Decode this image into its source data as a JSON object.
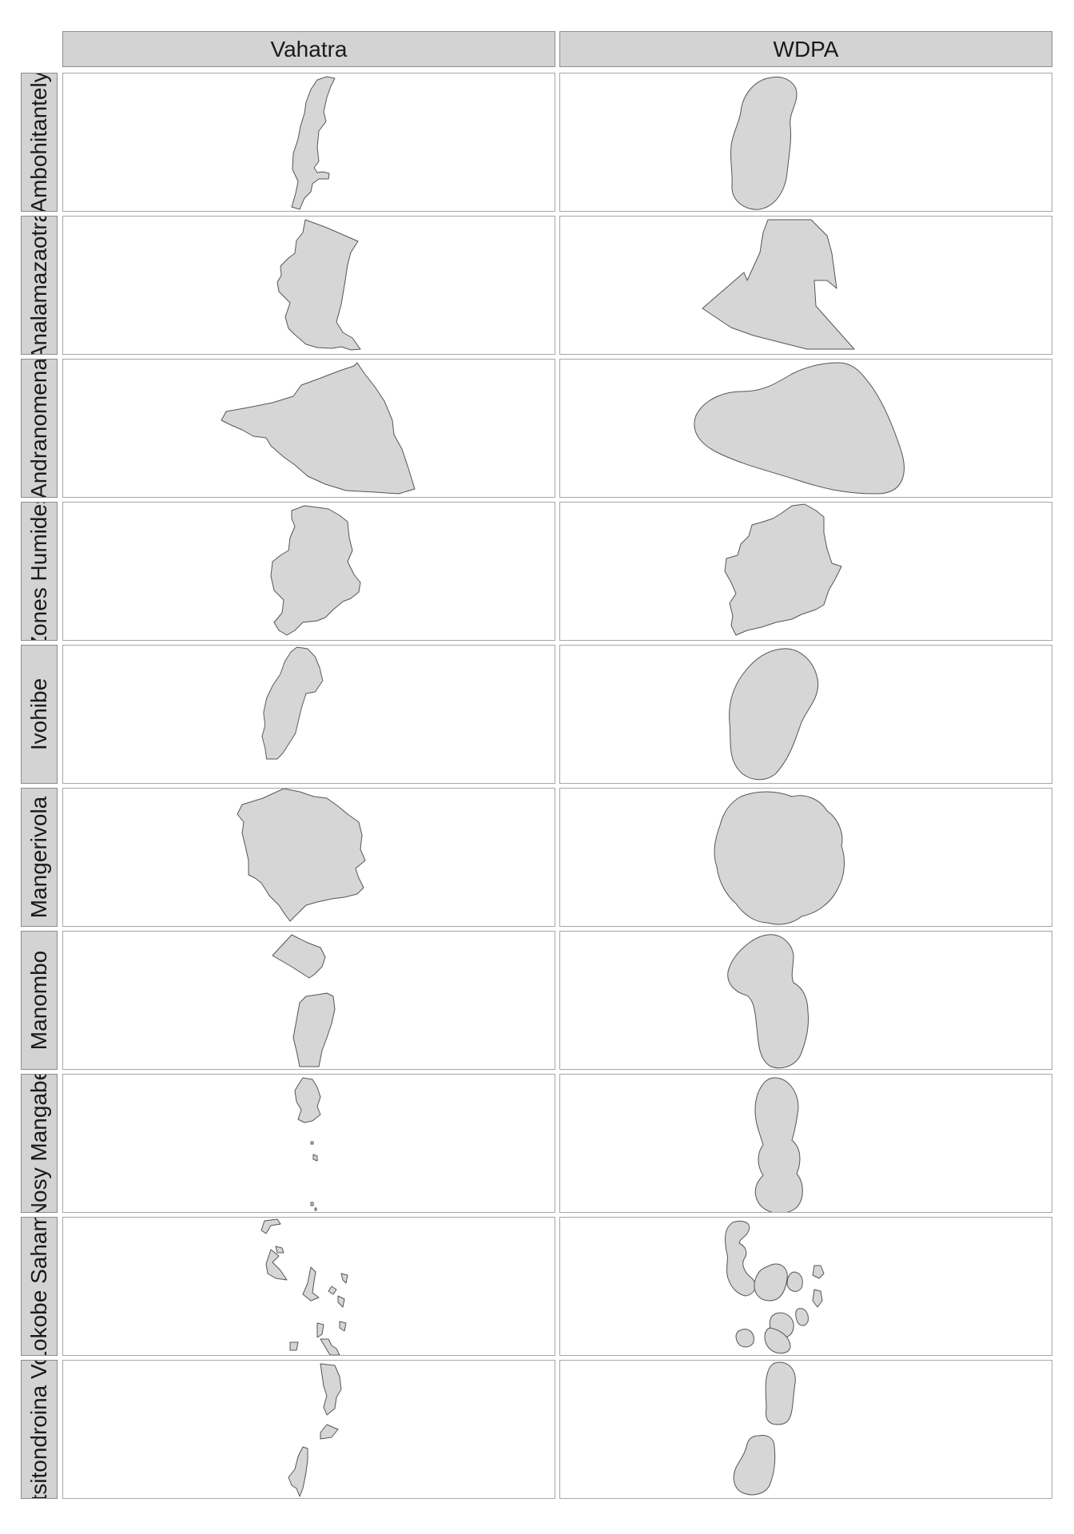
{
  "columns": [
    "Vahatra",
    "WDPA"
  ],
  "rows": [
    "Ambohitantely",
    "Analamazaotra",
    "Andranomena",
    "Zones Humides",
    "Ivohibe",
    "Mangerivola",
    "Manombo",
    "Nosy Mangabe",
    "Tampolo Nosy Be Lokobe Sahamalaza Iles Radama",
    "Ambohitsitondroina Vohibasia"
  ],
  "style": {
    "fill": "#d6d6d6",
    "stroke": "#555555",
    "strip": "#d3d3d3"
  }
}
